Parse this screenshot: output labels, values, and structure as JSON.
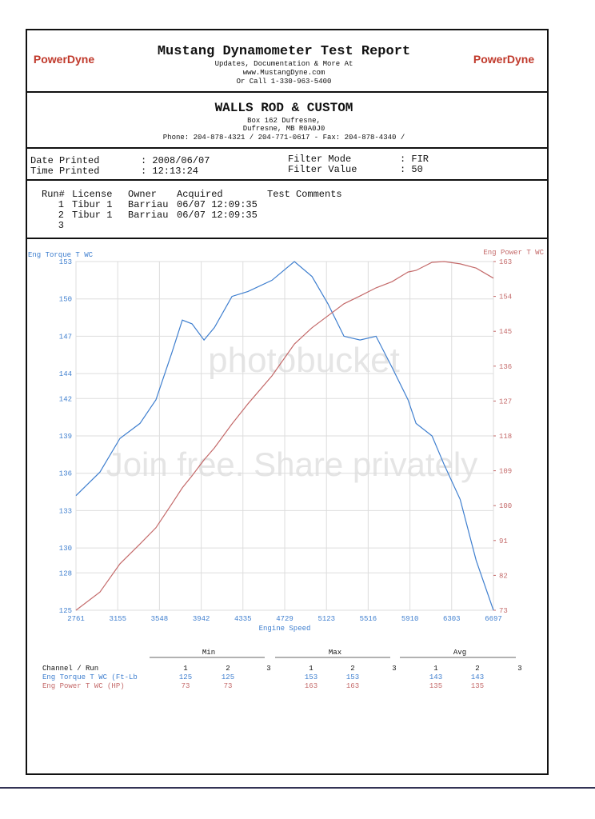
{
  "header": {
    "title": "Mustang Dynamometer Test Report",
    "lines": [
      "Updates, Documentation & More At",
      "www.MustangDyne.com",
      "Or Call 1-330-963-5400"
    ],
    "logo": "PowerDyne"
  },
  "customer": {
    "name": "WALLS ROD & CUSTOM",
    "lines": [
      "Box 162 Dufresne,",
      "Dufresne, MB  R0A0J0",
      "Phone: 204-878-4321 / 204-771-0617 - Fax: 204-878-4340 /"
    ]
  },
  "info": {
    "date_label": "Date Printed",
    "date": ": 2008/06/07",
    "time_label": "Time Printed",
    "time": ": 12:13:24",
    "filter_mode_label": "Filter Mode",
    "filter_mode": ": FIR",
    "filter_value_label": "Filter Value",
    "filter_value": ": 50"
  },
  "runs": {
    "headers": [
      "Run#",
      "License",
      "Owner",
      "Acquired",
      "Test Comments"
    ],
    "rows": [
      [
        "1",
        "Tibur 1",
        "Barriau",
        "06/07 12:09:35"
      ],
      [
        "2",
        "Tibur 1",
        "Barriau",
        "06/07 12:09:35"
      ],
      [
        "3"
      ]
    ]
  },
  "watermark": {
    "logo": "photobucket",
    "slogan": "Join free. Share privately"
  },
  "chart_data": {
    "type": "line",
    "x_label": "Engine Speed",
    "y_label": "Eng Torque T WC",
    "y2_label": "Eng Power T WC",
    "grid": true,
    "xlim": [
      2761,
      6697
    ],
    "xticks": [
      2761,
      3155,
      3548,
      3942,
      4335,
      4729,
      5123,
      5516,
      5910,
      6303,
      6697
    ],
    "ylim": [
      125,
      153
    ],
    "yticks": [
      125,
      128,
      130,
      133,
      136,
      139,
      142,
      144,
      147,
      150,
      153
    ],
    "y2lim": [
      73,
      163
    ],
    "y2ticks": [
      73,
      82,
      91,
      100,
      109,
      118,
      127,
      136,
      145,
      154,
      163
    ],
    "x": [
      2761,
      2987,
      3176,
      3364,
      3515,
      3666,
      3764,
      3855,
      3968,
      4066,
      4232,
      4383,
      4609,
      4820,
      4986,
      5137,
      5288,
      5439,
      5590,
      5741,
      5892,
      5967,
      6118,
      6232,
      6383,
      6534,
      6697
    ],
    "series": [
      {
        "name": "Eng Torque T WC",
        "color": "#3f7fcf",
        "values": [
          134.2,
          136.1,
          138.8,
          140.0,
          141.9,
          145.7,
          148.3,
          148.0,
          146.7,
          147.7,
          150.2,
          150.6,
          151.5,
          153.0,
          151.8,
          149.6,
          147.0,
          146.7,
          147.0,
          144.5,
          141.9,
          140.0,
          139.0,
          136.7,
          133.9,
          129.0,
          125.0
        ]
      },
      {
        "name": "Eng Power T WC",
        "color": "#c46a6a",
        "axis": "y2",
        "values": [
          73,
          77.7,
          85,
          90.1,
          94.3,
          100.5,
          104.6,
          107.7,
          111.8,
          114.9,
          121.1,
          126.3,
          133.5,
          141.7,
          145.9,
          149,
          152.1,
          154.1,
          156.2,
          157.8,
          160.3,
          160.7,
          162.8,
          163,
          162.4,
          161.3,
          158.7
        ]
      }
    ]
  },
  "stats": {
    "groups": [
      "Min",
      "Max",
      "Avg"
    ],
    "channel_header": "Channel / Run",
    "runs": [
      "1",
      "2",
      "3"
    ],
    "rows": [
      {
        "channel": "Eng Torque T WC (Ft-Lb",
        "min": [
          "125",
          "125"
        ],
        "max": [
          "153",
          "153"
        ],
        "avg": [
          "143",
          "143"
        ]
      },
      {
        "channel": "Eng Power T WC (HP)",
        "min": [
          "73",
          "73"
        ],
        "max": [
          "163",
          "163"
        ],
        "avg": [
          "135",
          "135"
        ]
      }
    ]
  }
}
